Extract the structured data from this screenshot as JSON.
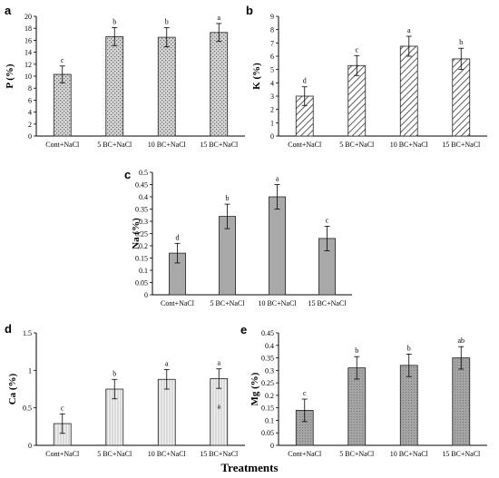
{
  "x_title": "Treatments",
  "chart_data": [
    {
      "panel": "a",
      "type": "bar",
      "ylabel": "P (%)",
      "ylim": [
        0,
        20
      ],
      "yticks": [
        0,
        2,
        4,
        6,
        8,
        10,
        12,
        14,
        16,
        18,
        20
      ],
      "categories": [
        "Cont+NaCl",
        "5 BC+NaCl",
        "10 BC+NaCl",
        "15 BC+NaCl"
      ],
      "values": [
        10.3,
        16.6,
        16.5,
        17.3
      ],
      "errors": [
        1.4,
        1.5,
        1.6,
        1.5
      ],
      "labels": [
        "c",
        "b",
        "b",
        "a"
      ],
      "pattern": "stipple",
      "grid": false
    },
    {
      "panel": "b",
      "type": "bar",
      "ylabel": "K (%)",
      "ylim": [
        0,
        9
      ],
      "yticks": [
        0,
        1,
        2,
        3,
        4,
        5,
        6,
        7,
        8,
        9
      ],
      "categories": [
        "Cont+NaCl",
        "5 BC+NaCl",
        "10 BC+NaCl",
        "15 BC+NaCl"
      ],
      "values": [
        3.0,
        5.3,
        6.75,
        5.8
      ],
      "errors": [
        0.7,
        0.75,
        0.75,
        0.8
      ],
      "labels": [
        "d",
        "c",
        "a",
        "b"
      ],
      "pattern": "hatch",
      "grid": false
    },
    {
      "panel": "c",
      "type": "bar",
      "ylabel": "Na (%)",
      "ylim": [
        0,
        0.5
      ],
      "yticks": [
        0,
        0.05,
        0.1,
        0.15,
        0.2,
        0.25,
        0.3,
        0.35,
        0.4,
        0.45,
        0.5
      ],
      "categories": [
        "Cont+NaCl",
        "5 BC+NaCl",
        "10 BC+NaCl",
        "15 BC+NaCl"
      ],
      "values": [
        0.17,
        0.32,
        0.4,
        0.23
      ],
      "errors": [
        0.04,
        0.05,
        0.05,
        0.05
      ],
      "labels": [
        "d",
        "b",
        "a",
        "c"
      ],
      "pattern": "solid",
      "grid": false
    },
    {
      "panel": "d",
      "type": "bar",
      "ylabel": "Ca (%)",
      "ylim": [
        0,
        1.5
      ],
      "yticks": [
        0,
        0.5,
        1,
        1.5
      ],
      "categories": [
        "Cont+NaCl",
        "5 BC+NaCl",
        "10 BC+NaCl",
        "15 BC+NaCl"
      ],
      "values": [
        0.29,
        0.75,
        0.88,
        0.89
      ],
      "errors": [
        0.13,
        0.13,
        0.13,
        0.13
      ],
      "labels": [
        "c",
        "b",
        "a",
        "a"
      ],
      "inner_label": "a",
      "pattern": "vlines",
      "grid": false
    },
    {
      "panel": "e",
      "type": "bar",
      "ylabel": "Mg (%)",
      "ylim": [
        0,
        0.45
      ],
      "yticks": [
        0,
        0.05,
        0.1,
        0.15,
        0.2,
        0.25,
        0.3,
        0.35,
        0.4,
        0.45
      ],
      "categories": [
        "Cont+NaCl",
        "5 BC+NaCl",
        "10 BC+NaCl",
        "15 BC+NaCl"
      ],
      "values": [
        0.14,
        0.31,
        0.32,
        0.35
      ],
      "errors": [
        0.045,
        0.045,
        0.045,
        0.045
      ],
      "labels": [
        "c",
        "b",
        "b",
        "ab"
      ],
      "pattern": "dots",
      "grid": false
    }
  ]
}
